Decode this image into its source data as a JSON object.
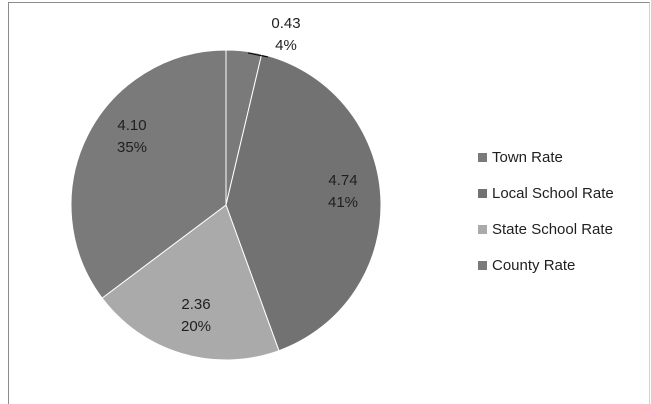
{
  "chart_data": {
    "type": "pie",
    "categories": [
      "Town Rate",
      "Local School Rate",
      "State School Rate",
      "County Rate"
    ],
    "values": [
      0.43,
      4.74,
      2.36,
      4.1
    ],
    "percent_labels": [
      "4%",
      "41%",
      "20%",
      "35%"
    ],
    "value_labels": [
      "0.43",
      "4.74",
      "2.36",
      "4.10"
    ],
    "colors": [
      "#7a7a7a",
      "#727272",
      "#aaaaaa",
      "#7a7a7a"
    ],
    "legend_position": "right"
  }
}
